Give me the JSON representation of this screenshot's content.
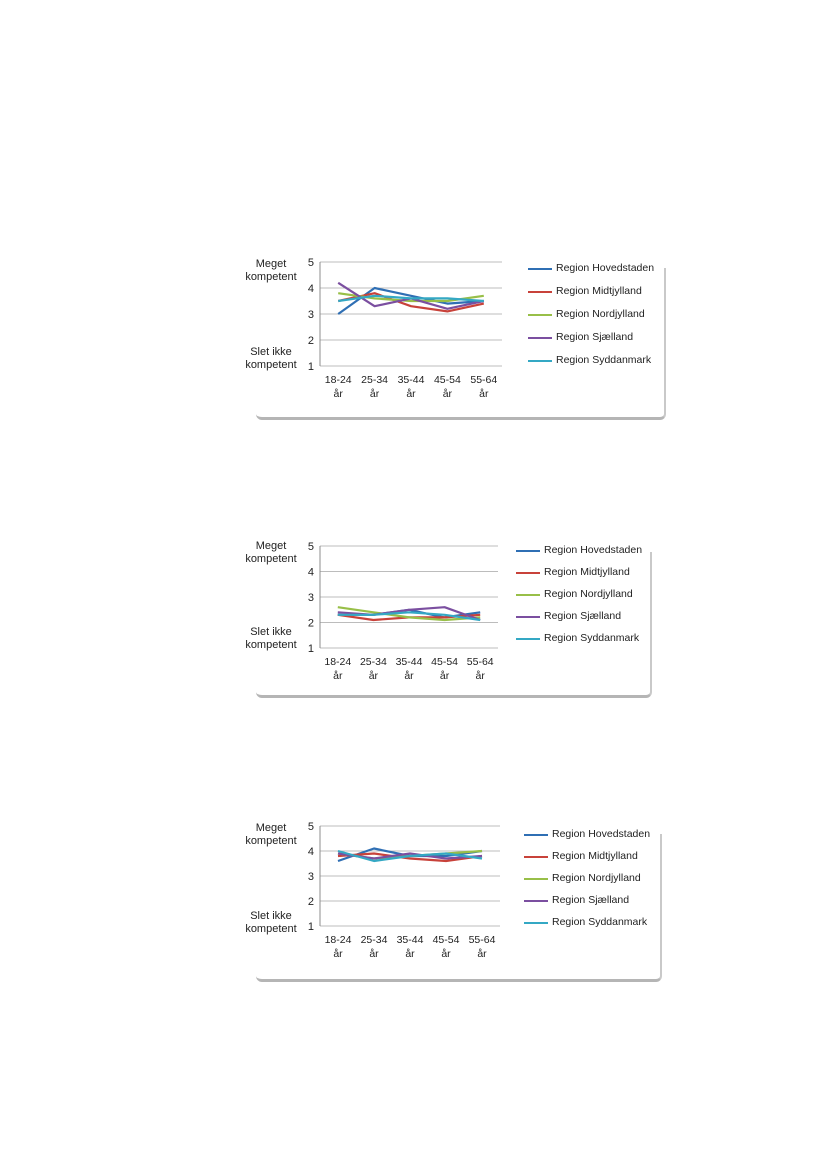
{
  "colors": {
    "Region Hovedstaden": "#2f6fb4",
    "Region Midtjylland": "#c8423a",
    "Region Nordjylland": "#98bf48",
    "Region Sjælland": "#7b4fa0",
    "Region Syddanmark": "#34a8c4"
  },
  "chart_data": [
    {
      "type": "line",
      "categories": [
        "18-24 år",
        "25-34 år",
        "35-44 år",
        "45-54 år",
        "55-64 år"
      ],
      "ylim": [
        1,
        5
      ],
      "yticks": [
        1,
        2,
        3,
        4,
        5
      ],
      "ylabel_top": "Meget kompetent",
      "ylabel_bottom": "Slet ikke kompetent",
      "grid": true,
      "legend": "right",
      "series": [
        {
          "name": "Region Hovedstaden",
          "values": [
            3.0,
            4.0,
            3.7,
            3.4,
            3.5
          ]
        },
        {
          "name": "Region Midtjylland",
          "values": [
            3.5,
            3.8,
            3.3,
            3.1,
            3.4
          ]
        },
        {
          "name": "Region Nordjylland",
          "values": [
            3.8,
            3.6,
            3.5,
            3.5,
            3.7
          ]
        },
        {
          "name": "Region Sjælland",
          "values": [
            4.2,
            3.3,
            3.6,
            3.2,
            3.5
          ]
        },
        {
          "name": "Region Syddanmark",
          "values": [
            3.5,
            3.7,
            3.6,
            3.6,
            3.5
          ]
        }
      ]
    },
    {
      "type": "line",
      "categories": [
        "18-24 år",
        "25-34 år",
        "35-44 år",
        "45-54 år",
        "55-64 år"
      ],
      "ylim": [
        1,
        5
      ],
      "yticks": [
        1,
        2,
        3,
        4,
        5
      ],
      "ylabel_top": "Meget kompetent",
      "ylabel_bottom": "Slet ikke kompetent",
      "grid": true,
      "legend": "right",
      "series": [
        {
          "name": "Region Hovedstaden",
          "values": [
            2.3,
            2.3,
            2.5,
            2.2,
            2.4
          ]
        },
        {
          "name": "Region Midtjylland",
          "values": [
            2.3,
            2.1,
            2.2,
            2.2,
            2.3
          ]
        },
        {
          "name": "Region Nordjylland",
          "values": [
            2.6,
            2.4,
            2.2,
            2.1,
            2.2
          ]
        },
        {
          "name": "Region Sjælland",
          "values": [
            2.4,
            2.3,
            2.5,
            2.6,
            2.1
          ]
        },
        {
          "name": "Region Syddanmark",
          "values": [
            2.3,
            2.3,
            2.4,
            2.3,
            2.1
          ]
        }
      ]
    },
    {
      "type": "line",
      "categories": [
        "18-24 år",
        "25-34 år",
        "35-44 år",
        "45-54 år",
        "55-64 år"
      ],
      "ylim": [
        1,
        5
      ],
      "yticks": [
        1,
        2,
        3,
        4,
        5
      ],
      "ylabel_top": "Meget kompetent",
      "ylabel_bottom": "Slet ikke kompetent",
      "grid": true,
      "legend": "right",
      "series": [
        {
          "name": "Region Hovedstaden",
          "values": [
            3.6,
            4.1,
            3.8,
            3.8,
            4.0
          ]
        },
        {
          "name": "Region Midtjylland",
          "values": [
            3.8,
            3.9,
            3.7,
            3.6,
            3.8
          ]
        },
        {
          "name": "Region Nordjylland",
          "values": [
            3.9,
            3.7,
            3.8,
            3.9,
            4.0
          ]
        },
        {
          "name": "Region Sjælland",
          "values": [
            3.9,
            3.7,
            3.9,
            3.7,
            3.8
          ]
        },
        {
          "name": "Region Syddanmark",
          "values": [
            4.0,
            3.6,
            3.8,
            3.9,
            3.7
          ]
        }
      ]
    }
  ]
}
